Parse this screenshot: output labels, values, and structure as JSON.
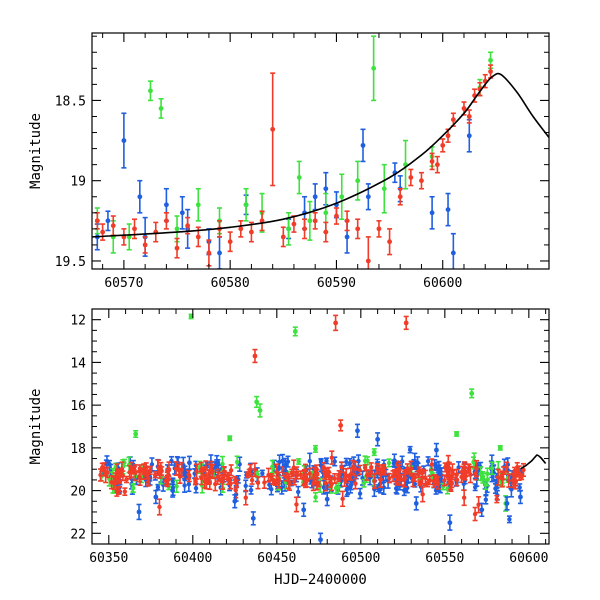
{
  "colors": {
    "blue": "#1f5fe0",
    "green": "#3ee23e",
    "red": "#f03c28",
    "model": "#000000"
  },
  "chart_data": [
    {
      "type": "scatter",
      "title": "",
      "xlabel": "",
      "ylabel": "Magnitude",
      "xlim": [
        60567,
        60610
      ],
      "ylim": [
        19.55,
        18.08
      ],
      "y_inverted": true,
      "x_ticks": [
        60570,
        60580,
        60590,
        60600
      ],
      "x_tick_labels": [
        "60570",
        "60580",
        "60590",
        "60600"
      ],
      "y_ticks": [
        18.5,
        19,
        19.5
      ],
      "y_tick_labels": [
        "18.5",
        "19",
        "19.5"
      ],
      "grid": false,
      "model_curve": {
        "x": [
          60567,
          60575,
          60580,
          60585,
          60590,
          60595,
          60598,
          60600,
          60602,
          60603,
          60604,
          60604.7,
          60605.5,
          60607,
          60608.5,
          60610
        ],
        "y": [
          19.35,
          19.32,
          19.29,
          19.24,
          19.14,
          18.98,
          18.84,
          18.72,
          18.58,
          18.49,
          18.4,
          18.35,
          18.34,
          18.45,
          18.6,
          18.73
        ]
      },
      "series": [
        {
          "color": "blue",
          "x": [
            60567.5,
            60568.5,
            60570,
            60571.5,
            60572,
            60574,
            60575.5,
            60576,
            60578,
            60579,
            60581.5,
            60585.5,
            60587,
            60588,
            60589,
            60590,
            60591,
            60592.5,
            60593,
            60595.5,
            60596,
            60599,
            60600.5,
            60601,
            60602.5
          ],
          "y": [
            19.35,
            19.25,
            18.75,
            19.1,
            19.35,
            19.15,
            19.2,
            19.3,
            19.38,
            19.45,
            19.15,
            19.3,
            19.2,
            19.1,
            19.05,
            19.15,
            19.35,
            18.78,
            19.1,
            18.95,
            19.05,
            19.2,
            19.18,
            19.45,
            18.72
          ],
          "err": [
            0.08,
            0.06,
            0.17,
            0.1,
            0.12,
            0.1,
            0.1,
            0.12,
            0.08,
            0.1,
            0.06,
            0.06,
            0.1,
            0.08,
            0.1,
            0.08,
            0.1,
            0.1,
            0.08,
            0.06,
            0.08,
            0.1,
            0.1,
            0.12,
            0.1
          ]
        },
        {
          "color": "green",
          "x": [
            60567.5,
            60569,
            60570.5,
            60572.5,
            60573.5,
            60575,
            60577,
            60579,
            60581.5,
            60583,
            60585.5,
            60586.5,
            60587.5,
            60589,
            60590.5,
            60592,
            60593.5,
            60594.5,
            60596.5,
            60599,
            60603.5,
            60604.5
          ],
          "y": [
            19.25,
            19.35,
            19.35,
            18.44,
            18.55,
            19.3,
            19.15,
            19.25,
            19.15,
            19.2,
            19.3,
            18.98,
            19.25,
            19.2,
            19.1,
            19.0,
            18.3,
            19.05,
            18.9,
            18.85,
            18.42,
            18.25
          ],
          "err": [
            0.08,
            0.1,
            0.08,
            0.06,
            0.06,
            0.08,
            0.1,
            0.08,
            0.1,
            0.12,
            0.1,
            0.1,
            0.12,
            0.12,
            0.14,
            0.12,
            0.2,
            0.15,
            0.15,
            0.06,
            0.05,
            0.05
          ]
        },
        {
          "color": "red",
          "x": [
            60567.5,
            60568,
            60569,
            60570,
            60571,
            60572,
            60573,
            60574,
            60575,
            60576,
            60577,
            60578,
            60579,
            60580,
            60581,
            60582,
            60583,
            60584,
            60585,
            60586,
            60587,
            60588,
            60589,
            60590,
            60591,
            60592,
            60593,
            60594,
            60595,
            60596,
            60597,
            60598,
            60599,
            60599.5,
            60600,
            60600.5,
            60601,
            60602,
            60602.5,
            60603,
            60603.5,
            60604,
            60604.5
          ],
          "y": [
            19.25,
            19.32,
            19.28,
            19.35,
            19.3,
            19.4,
            19.32,
            19.25,
            19.42,
            19.28,
            19.35,
            19.45,
            19.3,
            19.38,
            19.3,
            19.32,
            19.25,
            18.68,
            19.35,
            19.27,
            19.3,
            19.25,
            19.32,
            19.22,
            19.25,
            19.3,
            19.5,
            19.3,
            19.38,
            19.1,
            18.98,
            19.0,
            18.88,
            18.9,
            18.78,
            18.72,
            18.62,
            18.55,
            18.6,
            18.47,
            18.43,
            18.38,
            18.32
          ],
          "err": [
            0.05,
            0.05,
            0.06,
            0.05,
            0.06,
            0.05,
            0.06,
            0.05,
            0.06,
            0.05,
            0.06,
            0.08,
            0.05,
            0.06,
            0.05,
            0.06,
            0.06,
            0.35,
            0.06,
            0.05,
            0.06,
            0.05,
            0.06,
            0.05,
            0.06,
            0.06,
            0.15,
            0.05,
            0.08,
            0.05,
            0.05,
            0.05,
            0.05,
            0.05,
            0.04,
            0.04,
            0.04,
            0.04,
            0.04,
            0.04,
            0.04,
            0.04,
            0.04
          ]
        }
      ]
    },
    {
      "type": "scatter",
      "title": "",
      "xlabel": "HJD−2400000",
      "ylabel": "Magnitude",
      "xlim": [
        60340,
        60612
      ],
      "ylim": [
        22.5,
        11.5
      ],
      "y_inverted": true,
      "x_ticks": [
        60350,
        60400,
        60450,
        60500,
        60550,
        60600
      ],
      "x_tick_labels": [
        "60350",
        "60400",
        "60450",
        "60500",
        "60550",
        "60600"
      ],
      "y_ticks": [
        12,
        14,
        16,
        18,
        20,
        22
      ],
      "y_tick_labels": [
        "12",
        "14",
        "16",
        "18",
        "20",
        "22"
      ],
      "grid": false,
      "model_curve": {
        "x": [
          60595,
          60598,
          60600,
          60602,
          60604,
          60605,
          60607,
          60610
        ],
        "y": [
          18.98,
          18.84,
          18.72,
          18.58,
          18.4,
          18.34,
          18.45,
          18.73
        ]
      },
      "baseline": {
        "x_start": 60345,
        "x_end": 60597,
        "mag": 19.3
      },
      "series": [
        {
          "color": "green",
          "x": [
            60366,
            60399,
            60422,
            60438,
            60440,
            60461,
            60473,
            60508,
            60557,
            60566,
            60583
          ],
          "y": [
            17.35,
            11.85,
            17.55,
            15.85,
            16.25,
            12.55,
            18.05,
            18.2,
            17.35,
            15.45,
            18.0
          ],
          "err": [
            0.15,
            0.1,
            0.1,
            0.25,
            0.3,
            0.2,
            0.15,
            0.15,
            0.1,
            0.2,
            0.1
          ]
        },
        {
          "color": "red",
          "x": [
            60437,
            60485,
            60488,
            60527
          ],
          "y": [
            13.7,
            12.15,
            16.95,
            12.15
          ],
          "err": [
            0.3,
            0.35,
            0.25,
            0.3
          ]
        },
        {
          "color": "blue",
          "x": [
            60368,
            60378,
            60388,
            60398,
            60436,
            60455,
            60476,
            60480,
            60498,
            60510,
            60520,
            60533,
            60545,
            60553,
            60572,
            60587,
            60595,
            60466,
            60425
          ],
          "y": [
            21.0,
            20.3,
            20.0,
            18.7,
            21.3,
            18.8,
            22.3,
            20.4,
            17.2,
            17.6,
            18.6,
            20.6,
            18.1,
            21.5,
            20.9,
            20.6,
            20.3,
            20.9,
            20.5
          ],
          "err": [
            0.35,
            0.3,
            0.3,
            0.3,
            0.3,
            0.3,
            0.3,
            0.3,
            0.3,
            0.3,
            0.3,
            0.3,
            0.3,
            0.35,
            0.3,
            0.3,
            0.3,
            0.3,
            0.3
          ]
        }
      ]
    }
  ]
}
